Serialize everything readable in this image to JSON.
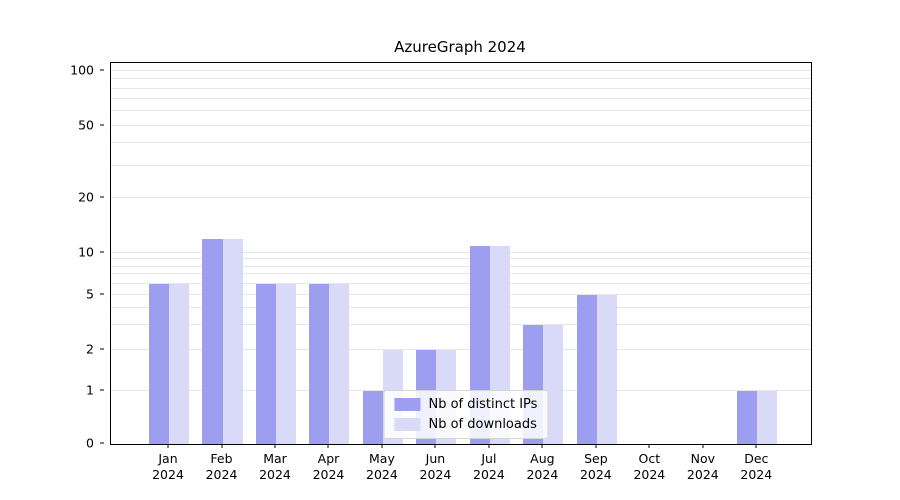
{
  "title": "AzureGraph 2024",
  "chart_data": {
    "type": "bar",
    "title": "AzureGraph 2024",
    "yscale": "symlog",
    "grid": true,
    "legend_position": "lower center",
    "ylim": [
      0,
      100
    ],
    "yticks": [
      0,
      1,
      2,
      5,
      10,
      20,
      50,
      100
    ],
    "categories": [
      {
        "month": "Jan",
        "year": "2024"
      },
      {
        "month": "Feb",
        "year": "2024"
      },
      {
        "month": "Mar",
        "year": "2024"
      },
      {
        "month": "Apr",
        "year": "2024"
      },
      {
        "month": "May",
        "year": "2024"
      },
      {
        "month": "Jun",
        "year": "2024"
      },
      {
        "month": "Jul",
        "year": "2024"
      },
      {
        "month": "Aug",
        "year": "2024"
      },
      {
        "month": "Sep",
        "year": "2024"
      },
      {
        "month": "Oct",
        "year": "2024"
      },
      {
        "month": "Nov",
        "year": "2024"
      },
      {
        "month": "Dec",
        "year": "2024"
      }
    ],
    "series": [
      {
        "name": "Nb of distinct IPs",
        "color": "#9e9ef0",
        "values": [
          6,
          12,
          6,
          6,
          1,
          2,
          11,
          3,
          5,
          0,
          0,
          1
        ]
      },
      {
        "name": "Nb of downloads",
        "color": "#d9d9f8",
        "values": [
          6,
          12,
          6,
          6,
          2,
          2,
          11,
          3,
          5,
          0,
          0,
          1
        ]
      }
    ]
  }
}
